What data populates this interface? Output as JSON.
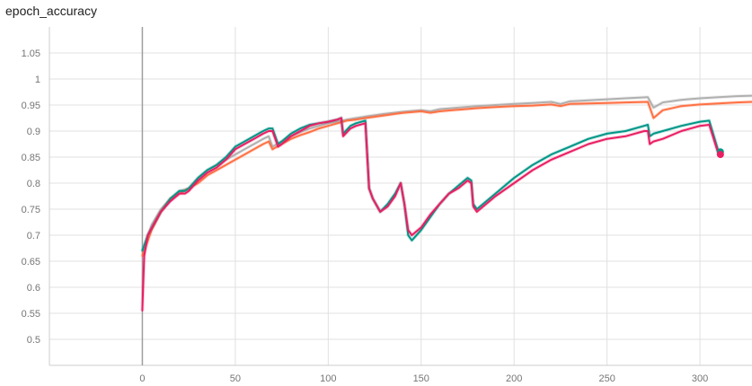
{
  "page": {
    "title": "epoch_accuracy"
  },
  "chart_data": {
    "type": "line",
    "title": "epoch_accuracy",
    "xlabel": "",
    "ylabel": "",
    "xlim": [
      -50,
      328
    ],
    "ylim": [
      0.45,
      1.1
    ],
    "xticks": [
      0,
      50,
      100,
      150,
      200,
      250,
      300
    ],
    "yticks": [
      0.5,
      0.55,
      0.6,
      0.65,
      0.7,
      0.75,
      0.8,
      0.85,
      0.9,
      0.95,
      1,
      1.05
    ],
    "grid": true,
    "legend": "none",
    "series": [
      {
        "color": "#b0b0b0",
        "x": [
          0,
          5,
          10,
          15,
          20,
          25,
          30,
          35,
          40,
          45,
          50,
          55,
          60,
          65,
          68,
          70,
          75,
          80,
          85,
          90,
          95,
          100,
          105,
          110,
          115,
          120,
          130,
          140,
          150,
          155,
          160,
          170,
          180,
          190,
          200,
          210,
          220,
          225,
          230,
          240,
          250,
          260,
          272,
          275,
          280,
          290,
          300,
          310,
          320,
          328
        ],
        "values": [
          0.67,
          0.72,
          0.75,
          0.77,
          0.785,
          0.79,
          0.81,
          0.825,
          0.835,
          0.845,
          0.855,
          0.865,
          0.875,
          0.885,
          0.89,
          0.87,
          0.88,
          0.89,
          0.898,
          0.905,
          0.91,
          0.915,
          0.918,
          0.922,
          0.925,
          0.928,
          0.933,
          0.937,
          0.94,
          0.938,
          0.942,
          0.945,
          0.948,
          0.95,
          0.952,
          0.954,
          0.956,
          0.952,
          0.957,
          0.959,
          0.961,
          0.963,
          0.965,
          0.945,
          0.955,
          0.96,
          0.963,
          0.965,
          0.967,
          0.968
        ]
      },
      {
        "color": "#ff7043",
        "x": [
          0,
          5,
          10,
          15,
          20,
          25,
          30,
          35,
          40,
          45,
          50,
          55,
          60,
          65,
          68,
          70,
          75,
          80,
          85,
          90,
          95,
          100,
          105,
          110,
          115,
          120,
          130,
          140,
          150,
          155,
          160,
          170,
          180,
          190,
          200,
          210,
          220,
          225,
          230,
          240,
          250,
          260,
          272,
          275,
          280,
          290,
          300,
          310,
          320,
          328
        ],
        "values": [
          0.66,
          0.71,
          0.745,
          0.77,
          0.78,
          0.79,
          0.8,
          0.815,
          0.825,
          0.835,
          0.845,
          0.855,
          0.865,
          0.875,
          0.88,
          0.865,
          0.875,
          0.885,
          0.892,
          0.898,
          0.905,
          0.91,
          0.915,
          0.92,
          0.922,
          0.925,
          0.93,
          0.935,
          0.938,
          0.935,
          0.938,
          0.941,
          0.944,
          0.946,
          0.948,
          0.949,
          0.951,
          0.948,
          0.952,
          0.953,
          0.954,
          0.955,
          0.956,
          0.925,
          0.94,
          0.948,
          0.951,
          0.953,
          0.955,
          0.956
        ]
      },
      {
        "color": "#009688",
        "x": [
          0,
          3,
          6,
          10,
          15,
          20,
          23,
          25,
          30,
          35,
          40,
          45,
          50,
          55,
          60,
          65,
          68,
          70,
          73,
          75,
          80,
          85,
          90,
          95,
          100,
          105,
          107,
          108,
          112,
          115,
          120,
          122,
          124,
          128,
          132,
          136,
          139,
          141,
          143,
          145,
          150,
          155,
          160,
          165,
          170,
          175,
          177,
          178,
          180,
          190,
          200,
          210,
          220,
          230,
          240,
          250,
          260,
          270,
          272,
          273,
          275,
          280,
          290,
          300,
          305,
          310,
          311
        ],
        "values": [
          0.67,
          0.7,
          0.72,
          0.745,
          0.77,
          0.785,
          0.785,
          0.79,
          0.81,
          0.825,
          0.835,
          0.85,
          0.87,
          0.88,
          0.89,
          0.9,
          0.905,
          0.905,
          0.875,
          0.88,
          0.895,
          0.905,
          0.912,
          0.915,
          0.918,
          0.922,
          0.925,
          0.895,
          0.91,
          0.915,
          0.92,
          0.79,
          0.77,
          0.745,
          0.76,
          0.78,
          0.8,
          0.76,
          0.7,
          0.69,
          0.71,
          0.735,
          0.76,
          0.78,
          0.795,
          0.81,
          0.805,
          0.76,
          0.75,
          0.78,
          0.81,
          0.835,
          0.855,
          0.87,
          0.885,
          0.895,
          0.9,
          0.91,
          0.912,
          0.89,
          0.895,
          0.9,
          0.91,
          0.918,
          0.92,
          0.86,
          0.86
        ]
      },
      {
        "color": "#e91e63",
        "x": [
          0,
          1,
          3,
          6,
          10,
          15,
          20,
          23,
          25,
          30,
          35,
          40,
          45,
          50,
          55,
          60,
          65,
          68,
          70,
          73,
          75,
          80,
          85,
          90,
          95,
          100,
          105,
          107,
          108,
          112,
          115,
          120,
          122,
          124,
          128,
          132,
          136,
          139,
          141,
          143,
          145,
          150,
          155,
          160,
          165,
          170,
          175,
          177,
          178,
          180,
          190,
          200,
          210,
          220,
          230,
          240,
          250,
          260,
          270,
          272,
          273,
          275,
          280,
          290,
          300,
          305,
          310,
          311
        ],
        "values": [
          0.555,
          0.66,
          0.7,
          0.72,
          0.745,
          0.765,
          0.78,
          0.78,
          0.785,
          0.805,
          0.82,
          0.83,
          0.845,
          0.865,
          0.875,
          0.885,
          0.895,
          0.9,
          0.9,
          0.87,
          0.875,
          0.89,
          0.9,
          0.91,
          0.915,
          0.918,
          0.922,
          0.925,
          0.89,
          0.905,
          0.91,
          0.915,
          0.79,
          0.77,
          0.745,
          0.755,
          0.775,
          0.8,
          0.76,
          0.71,
          0.7,
          0.715,
          0.74,
          0.76,
          0.78,
          0.79,
          0.805,
          0.8,
          0.755,
          0.745,
          0.775,
          0.8,
          0.825,
          0.845,
          0.86,
          0.875,
          0.885,
          0.89,
          0.9,
          0.9,
          0.875,
          0.88,
          0.885,
          0.9,
          0.91,
          0.912,
          0.855,
          0.855
        ]
      }
    ]
  }
}
